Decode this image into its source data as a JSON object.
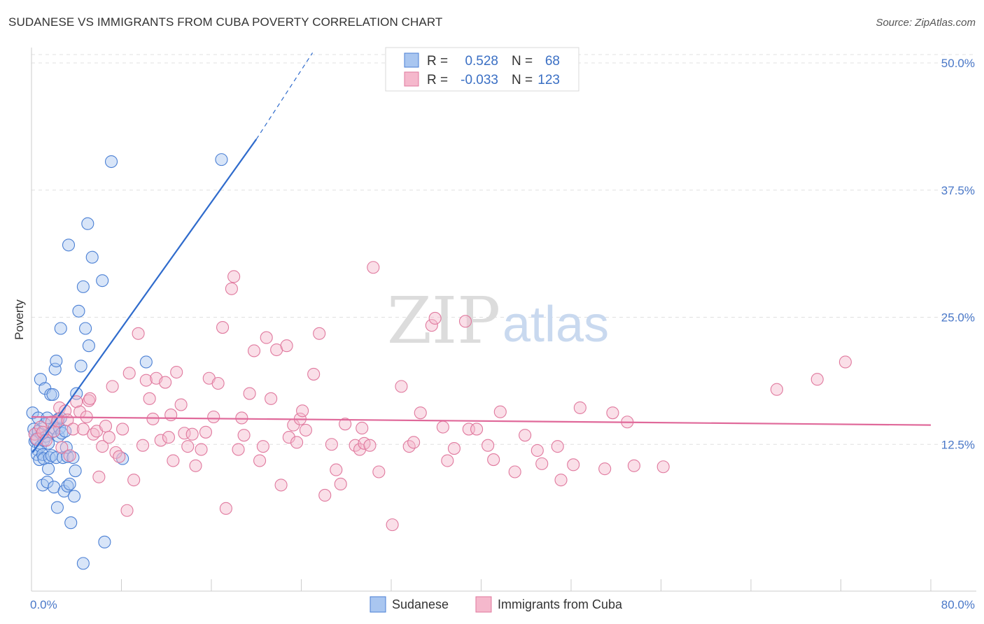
{
  "header": {
    "title": "SUDANESE VS IMMIGRANTS FROM CUBA POVERTY CORRELATION CHART",
    "source": "Source: ZipAtlas.com"
  },
  "watermark": {
    "part1": "ZIP",
    "part2": "atlas"
  },
  "colors": {
    "blue": "#4a7fd4",
    "blue_fill": "#a9c6f0",
    "pink": "#e0799e",
    "pink_fill": "#f5b8cc",
    "axis_label": "#4a78c8"
  },
  "legend": {
    "r_label": "R =",
    "n_label": "N =",
    "rows": [
      {
        "name": "Sudanese",
        "r": "0.528",
        "n": "68",
        "color": "blue"
      },
      {
        "name": "Immigrants from Cuba",
        "r": "-0.033",
        "n": "123",
        "color": "pink"
      }
    ]
  },
  "bottom_legend": [
    "Sudanese",
    "Immigrants from Cuba"
  ],
  "chart_data": {
    "type": "scatter",
    "title": "SUDANESE VS IMMIGRANTS FROM CUBA POVERTY CORRELATION CHART",
    "ylabel": "Poverty",
    "xlim": [
      0,
      80
    ],
    "ylim": [
      0,
      50
    ],
    "x_ticks": [
      "0.0%",
      "80.0%"
    ],
    "y_ticks": [
      {
        "value": 12.5,
        "label": "12.5%"
      },
      {
        "value": 25.0,
        "label": "25.0%"
      },
      {
        "value": 37.5,
        "label": "37.5%"
      },
      {
        "value": 50.0,
        "label": "50.0%"
      }
    ],
    "grid": true,
    "series": [
      {
        "name": "Sudanese",
        "r": 0.528,
        "n": 68,
        "trend": {
          "x0": 0.1,
          "y0": 11.7,
          "x1": 20.0,
          "y1": 42.5,
          "dash_to_x": 25.0,
          "dash_to_y": 51.0
        },
        "points": [
          [
            0.1,
            15.6
          ],
          [
            0.2,
            14.0
          ],
          [
            0.3,
            13.5
          ],
          [
            0.3,
            12.8
          ],
          [
            0.4,
            13.0
          ],
          [
            0.5,
            12.0
          ],
          [
            0.5,
            11.5
          ],
          [
            0.6,
            13.8
          ],
          [
            0.6,
            15.1
          ],
          [
            0.7,
            11.0
          ],
          [
            0.8,
            18.9
          ],
          [
            0.8,
            12.3
          ],
          [
            0.9,
            13.5
          ],
          [
            1.0,
            8.5
          ],
          [
            1.0,
            11.5
          ],
          [
            1.1,
            11.1
          ],
          [
            1.1,
            12.9
          ],
          [
            1.2,
            18.0
          ],
          [
            1.2,
            14.5
          ],
          [
            1.3,
            13.3
          ],
          [
            1.4,
            15.1
          ],
          [
            1.4,
            8.8
          ],
          [
            1.5,
            10.1
          ],
          [
            1.5,
            12.6
          ],
          [
            1.6,
            11.2
          ],
          [
            1.7,
            17.4
          ],
          [
            1.8,
            13.7
          ],
          [
            1.8,
            11.4
          ],
          [
            1.9,
            17.4
          ],
          [
            2.0,
            8.3
          ],
          [
            2.0,
            14.1
          ],
          [
            2.1,
            19.9
          ],
          [
            2.2,
            20.7
          ],
          [
            2.2,
            11.2
          ],
          [
            2.3,
            6.3
          ],
          [
            2.4,
            15.0
          ],
          [
            2.4,
            13.3
          ],
          [
            2.5,
            14.1
          ],
          [
            2.6,
            15.1
          ],
          [
            2.6,
            23.9
          ],
          [
            2.7,
            13.6
          ],
          [
            2.8,
            11.2
          ],
          [
            2.9,
            7.9
          ],
          [
            3.0,
            13.8
          ],
          [
            3.1,
            12.2
          ],
          [
            3.2,
            11.3
          ],
          [
            3.2,
            8.4
          ],
          [
            3.3,
            32.1
          ],
          [
            3.4,
            8.6
          ],
          [
            3.5,
            4.8
          ],
          [
            3.7,
            11.2
          ],
          [
            3.8,
            7.4
          ],
          [
            3.9,
            9.9
          ],
          [
            4.0,
            17.5
          ],
          [
            4.2,
            25.6
          ],
          [
            4.4,
            20.2
          ],
          [
            4.6,
            0.8
          ],
          [
            4.6,
            28.0
          ],
          [
            4.8,
            23.9
          ],
          [
            5.0,
            34.2
          ],
          [
            5.1,
            22.2
          ],
          [
            5.4,
            30.9
          ],
          [
            6.3,
            28.6
          ],
          [
            6.5,
            2.9
          ],
          [
            7.1,
            40.3
          ],
          [
            8.1,
            11.1
          ],
          [
            10.2,
            20.6
          ],
          [
            16.9,
            40.5
          ]
        ]
      },
      {
        "name": "Immigrants from Cuba",
        "r": -0.033,
        "n": 123,
        "trend": {
          "x0": 0,
          "y0": 15.2,
          "x1": 80,
          "y1": 14.4
        },
        "points": [
          [
            0.3,
            13.5
          ],
          [
            0.5,
            13.0
          ],
          [
            0.8,
            14.2
          ],
          [
            1.0,
            13.7
          ],
          [
            1.3,
            12.9
          ],
          [
            1.8,
            14.7
          ],
          [
            2.0,
            13.8
          ],
          [
            2.3,
            14.8
          ],
          [
            2.5,
            16.1
          ],
          [
            2.7,
            12.2
          ],
          [
            3.0,
            15.8
          ],
          [
            3.2,
            14.9
          ],
          [
            3.4,
            11.4
          ],
          [
            3.7,
            14.0
          ],
          [
            4.0,
            16.7
          ],
          [
            4.3,
            15.7
          ],
          [
            4.6,
            14.0
          ],
          [
            4.9,
            15.2
          ],
          [
            5.1,
            16.8
          ],
          [
            5.2,
            17.0
          ],
          [
            5.5,
            13.5
          ],
          [
            5.8,
            13.8
          ],
          [
            6.0,
            9.3
          ],
          [
            6.3,
            12.3
          ],
          [
            6.6,
            14.3
          ],
          [
            6.9,
            13.2
          ],
          [
            7.2,
            18.2
          ],
          [
            7.5,
            11.7
          ],
          [
            7.8,
            11.3
          ],
          [
            8.1,
            14.0
          ],
          [
            8.5,
            6.0
          ],
          [
            8.7,
            19.5
          ],
          [
            9.1,
            9.0
          ],
          [
            9.5,
            23.4
          ],
          [
            9.9,
            12.4
          ],
          [
            10.2,
            18.8
          ],
          [
            10.5,
            17.0
          ],
          [
            10.8,
            15.0
          ],
          [
            11.1,
            19.0
          ],
          [
            11.5,
            12.9
          ],
          [
            11.9,
            18.6
          ],
          [
            12.2,
            13.2
          ],
          [
            12.4,
            15.4
          ],
          [
            12.6,
            10.9
          ],
          [
            12.9,
            19.6
          ],
          [
            13.3,
            16.4
          ],
          [
            13.6,
            13.6
          ],
          [
            13.9,
            12.3
          ],
          [
            14.3,
            13.5
          ],
          [
            14.6,
            10.4
          ],
          [
            15.1,
            12.0
          ],
          [
            15.5,
            13.7
          ],
          [
            15.8,
            19.0
          ],
          [
            16.2,
            15.2
          ],
          [
            16.6,
            18.5
          ],
          [
            17.0,
            24.0
          ],
          [
            17.3,
            6.2
          ],
          [
            17.8,
            27.8
          ],
          [
            18.0,
            29.0
          ],
          [
            18.4,
            12.0
          ],
          [
            18.7,
            15.1
          ],
          [
            18.9,
            13.4
          ],
          [
            19.4,
            17.5
          ],
          [
            19.8,
            21.7
          ],
          [
            20.3,
            10.9
          ],
          [
            20.6,
            12.3
          ],
          [
            20.9,
            23.0
          ],
          [
            21.3,
            17.0
          ],
          [
            21.8,
            21.8
          ],
          [
            22.2,
            8.5
          ],
          [
            22.7,
            22.2
          ],
          [
            22.9,
            13.2
          ],
          [
            23.3,
            14.4
          ],
          [
            23.6,
            12.7
          ],
          [
            23.9,
            15.0
          ],
          [
            24.1,
            15.8
          ],
          [
            24.4,
            13.9
          ],
          [
            25.1,
            19.4
          ],
          [
            25.6,
            23.4
          ],
          [
            26.1,
            7.5
          ],
          [
            26.7,
            12.5
          ],
          [
            27.1,
            10.0
          ],
          [
            27.5,
            8.6
          ],
          [
            27.9,
            14.5
          ],
          [
            28.8,
            12.4
          ],
          [
            29.2,
            12.0
          ],
          [
            29.4,
            14.1
          ],
          [
            29.6,
            12.6
          ],
          [
            30.1,
            12.4
          ],
          [
            30.4,
            29.9
          ],
          [
            30.9,
            9.8
          ],
          [
            32.1,
            4.6
          ],
          [
            32.9,
            18.2
          ],
          [
            33.6,
            12.3
          ],
          [
            34.0,
            12.7
          ],
          [
            34.6,
            15.6
          ],
          [
            35.6,
            24.2
          ],
          [
            35.9,
            24.9
          ],
          [
            36.6,
            14.2
          ],
          [
            37.0,
            10.9
          ],
          [
            37.6,
            12.1
          ],
          [
            38.6,
            24.6
          ],
          [
            38.9,
            14.0
          ],
          [
            39.6,
            14.0
          ],
          [
            40.6,
            12.4
          ],
          [
            41.1,
            11.0
          ],
          [
            41.7,
            15.7
          ],
          [
            43.0,
            9.8
          ],
          [
            43.9,
            13.4
          ],
          [
            45.0,
            11.9
          ],
          [
            45.4,
            10.6
          ],
          [
            46.8,
            12.3
          ],
          [
            47.1,
            9.0
          ],
          [
            48.2,
            10.5
          ],
          [
            48.8,
            16.1
          ],
          [
            51.0,
            10.1
          ],
          [
            51.7,
            15.6
          ],
          [
            53.0,
            14.7
          ],
          [
            53.6,
            10.4
          ],
          [
            56.2,
            10.3
          ],
          [
            66.3,
            17.9
          ],
          [
            69.9,
            18.9
          ],
          [
            72.4,
            20.6
          ]
        ]
      }
    ]
  }
}
